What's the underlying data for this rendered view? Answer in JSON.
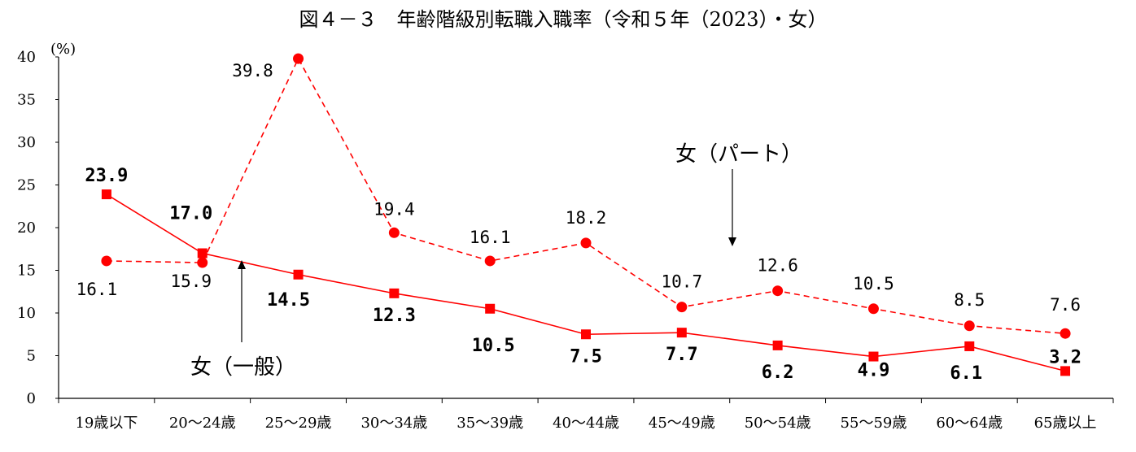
{
  "chart_data": {
    "type": "line",
    "title": "図４－３　年齢階級別転職入職率（令和５年（2023）・女）",
    "ylabel": "(%)",
    "ylim": [
      0,
      40
    ],
    "yticks": [
      "0",
      "5",
      "10",
      "15",
      "20",
      "25",
      "30",
      "35",
      "40"
    ],
    "grid": false,
    "categories": [
      "19歳以下",
      "20～24歳",
      "25～29歳",
      "30～34歳",
      "35～39歳",
      "40～44歳",
      "45～49歳",
      "50～54歳",
      "55～59歳",
      "60～64歳",
      "65歳以上"
    ],
    "series": [
      {
        "name": "女（一般）",
        "marker": "square",
        "line": "solid",
        "color": "#ff0000",
        "values": [
          23.9,
          17.0,
          14.5,
          12.3,
          10.5,
          7.5,
          7.7,
          6.2,
          4.9,
          6.1,
          3.2
        ],
        "labels": [
          "23.9",
          "17.0",
          "14.5",
          "12.3",
          "10.5",
          "7.5",
          "7.7",
          "6.2",
          "4.9",
          "6.1",
          "3.2"
        ]
      },
      {
        "name": "女（パート）",
        "marker": "circle",
        "line": "dashed",
        "color": "#ff0000",
        "values": [
          16.1,
          15.9,
          39.8,
          19.4,
          16.1,
          18.2,
          10.7,
          12.6,
          10.5,
          8.5,
          7.6
        ],
        "labels": [
          "16.1",
          "15.9",
          "39.8",
          "19.4",
          "16.1",
          "18.2",
          "10.7",
          "12.6",
          "10.5",
          "8.5",
          "7.6"
        ]
      }
    ]
  }
}
